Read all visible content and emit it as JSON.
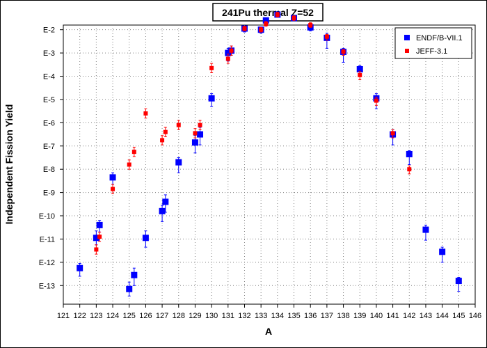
{
  "chart_data": {
    "type": "scatter",
    "title": "241Pu thermal Z=52",
    "xlabel": "A",
    "ylabel": "Independent Fission Yield",
    "xlim": [
      121,
      146
    ],
    "y_scale": "log",
    "ylim_exponent": [
      -13.8,
      -1.8
    ],
    "x_ticks": [
      121,
      122,
      123,
      124,
      125,
      126,
      127,
      128,
      129,
      130,
      131,
      132,
      133,
      134,
      135,
      136,
      137,
      138,
      139,
      140,
      141,
      142,
      143,
      144,
      145,
      146
    ],
    "y_tick_labels": [
      "E-2",
      "E-3",
      "E-4",
      "E-5",
      "E-6",
      "E-7",
      "E-8",
      "E-9",
      "E-10",
      "E-11",
      "E-12",
      "E-13"
    ],
    "y_tick_exponents": [
      -2,
      -3,
      -4,
      -5,
      -6,
      -7,
      -8,
      -9,
      -10,
      -11,
      -12,
      -13
    ],
    "grid": true,
    "legend_position": "top-right",
    "series": [
      {
        "name": "ENDF/B-VII.1",
        "color": "#0000ff",
        "marker": "square-large",
        "points": [
          {
            "x": 122,
            "y_exp": -12.25,
            "err_lo": 0.35,
            "err_hi": 0.2
          },
          {
            "x": 123,
            "y_exp": -10.95,
            "err_lo": 0.3,
            "err_hi": 0.3
          },
          {
            "x": 123.2,
            "y_exp": -10.4,
            "err_lo": 0.3,
            "err_hi": 0.2
          },
          {
            "x": 124,
            "y_exp": -8.35,
            "err_lo": 0.3,
            "err_hi": 0.2
          },
          {
            "x": 125,
            "y_exp": -13.15,
            "err_lo": 0.3,
            "err_hi": 0.3
          },
          {
            "x": 125.3,
            "y_exp": -12.55,
            "err_lo": 0.45,
            "err_hi": 0.3
          },
          {
            "x": 126,
            "y_exp": -10.95,
            "err_lo": 0.4,
            "err_hi": 0.3
          },
          {
            "x": 127,
            "y_exp": -9.8,
            "err_lo": 0.45,
            "err_hi": 0.25
          },
          {
            "x": 127.2,
            "y_exp": -9.4,
            "err_lo": 0.45,
            "err_hi": 0.3
          },
          {
            "x": 128,
            "y_exp": -7.7,
            "err_lo": 0.45,
            "err_hi": 0.2
          },
          {
            "x": 129,
            "y_exp": -6.85,
            "err_lo": 0.45,
            "err_hi": 0.3
          },
          {
            "x": 129.3,
            "y_exp": -6.5,
            "err_lo": 0.45,
            "err_hi": 0.3
          },
          {
            "x": 130,
            "y_exp": -4.95,
            "err_lo": 0.35,
            "err_hi": 0.2
          },
          {
            "x": 131,
            "y_exp": -3.0,
            "err_lo": 0.35,
            "err_hi": 0.2
          },
          {
            "x": 131.2,
            "y_exp": -2.9,
            "err_lo": 0.2,
            "err_hi": 0.2
          },
          {
            "x": 132,
            "y_exp": -1.95,
            "err_lo": 0.15,
            "err_hi": 0.1
          },
          {
            "x": 133,
            "y_exp": -2.0,
            "err_lo": 0.15,
            "err_hi": 0.1
          },
          {
            "x": 133.3,
            "y_exp": -1.6,
            "err_lo": 0.15,
            "err_hi": 0.1
          },
          {
            "x": 134,
            "y_exp": -1.35,
            "err_lo": 0.1,
            "err_hi": 0.1
          },
          {
            "x": 135,
            "y_exp": -1.5,
            "err_lo": 0.1,
            "err_hi": 0.1
          },
          {
            "x": 136,
            "y_exp": -1.9,
            "err_lo": 0.15,
            "err_hi": 0.1
          },
          {
            "x": 137,
            "y_exp": -2.35,
            "err_lo": 0.45,
            "err_hi": 0.2
          },
          {
            "x": 138,
            "y_exp": -2.95,
            "err_lo": 0.45,
            "err_hi": 0.15
          },
          {
            "x": 139,
            "y_exp": -3.7,
            "err_lo": 0.3,
            "err_hi": 0.15
          },
          {
            "x": 140,
            "y_exp": -4.95,
            "err_lo": 0.45,
            "err_hi": 0.2
          },
          {
            "x": 141,
            "y_exp": -6.5,
            "err_lo": 0.45,
            "err_hi": 0.2
          },
          {
            "x": 142,
            "y_exp": -7.35,
            "err_lo": 0.45,
            "err_hi": 0.15
          },
          {
            "x": 143,
            "y_exp": -10.6,
            "err_lo": 0.45,
            "err_hi": 0.2
          },
          {
            "x": 144,
            "y_exp": -11.55,
            "err_lo": 0.45,
            "err_hi": 0.2
          },
          {
            "x": 145,
            "y_exp": -12.8,
            "err_lo": 0.45,
            "err_hi": 0.15
          }
        ]
      },
      {
        "name": "JEFF-3.1",
        "color": "#ff0000",
        "marker": "square-small",
        "points": [
          {
            "x": 123,
            "y_exp": -11.45,
            "err_lo": 0.2,
            "err_hi": 0.2
          },
          {
            "x": 123.2,
            "y_exp": -10.9,
            "err_lo": 0.2,
            "err_hi": 0.2
          },
          {
            "x": 124,
            "y_exp": -8.85,
            "err_lo": 0.2,
            "err_hi": 0.2
          },
          {
            "x": 125,
            "y_exp": -7.8,
            "err_lo": 0.2,
            "err_hi": 0.2
          },
          {
            "x": 125.3,
            "y_exp": -7.25,
            "err_lo": 0.2,
            "err_hi": 0.2
          },
          {
            "x": 126,
            "y_exp": -5.6,
            "err_lo": 0.2,
            "err_hi": 0.2
          },
          {
            "x": 127,
            "y_exp": -6.75,
            "err_lo": 0.2,
            "err_hi": 0.2
          },
          {
            "x": 127.2,
            "y_exp": -6.4,
            "err_lo": 0.2,
            "err_hi": 0.2
          },
          {
            "x": 128,
            "y_exp": -6.1,
            "err_lo": 0.2,
            "err_hi": 0.2
          },
          {
            "x": 129,
            "y_exp": -6.45,
            "err_lo": 0.2,
            "err_hi": 0.2
          },
          {
            "x": 129.3,
            "y_exp": -6.1,
            "err_lo": 0.2,
            "err_hi": 0.2
          },
          {
            "x": 130,
            "y_exp": -3.65,
            "err_lo": 0.2,
            "err_hi": 0.2
          },
          {
            "x": 131,
            "y_exp": -3.25,
            "err_lo": 0.2,
            "err_hi": 0.2
          },
          {
            "x": 131.2,
            "y_exp": -2.9,
            "err_lo": 0.2,
            "err_hi": 0.2
          },
          {
            "x": 132,
            "y_exp": -1.95,
            "err_lo": 0.1,
            "err_hi": 0.1
          },
          {
            "x": 133,
            "y_exp": -2.0,
            "err_lo": 0.1,
            "err_hi": 0.1
          },
          {
            "x": 133.3,
            "y_exp": -1.75,
            "err_lo": 0.1,
            "err_hi": 0.1
          },
          {
            "x": 134,
            "y_exp": -1.35,
            "err_lo": 0.1,
            "err_hi": 0.1
          },
          {
            "x": 135,
            "y_exp": -1.5,
            "err_lo": 0.1,
            "err_hi": 0.1
          },
          {
            "x": 136,
            "y_exp": -1.8,
            "err_lo": 0.1,
            "err_hi": 0.1
          },
          {
            "x": 137,
            "y_exp": -2.3,
            "err_lo": 0.15,
            "err_hi": 0.1
          },
          {
            "x": 138,
            "y_exp": -2.95,
            "err_lo": 0.15,
            "err_hi": 0.1
          },
          {
            "x": 139,
            "y_exp": -3.95,
            "err_lo": 0.2,
            "err_hi": 0.15
          },
          {
            "x": 140,
            "y_exp": -5.05,
            "err_lo": 0.2,
            "err_hi": 0.15
          },
          {
            "x": 141,
            "y_exp": -6.45,
            "err_lo": 0.2,
            "err_hi": 0.15
          },
          {
            "x": 142,
            "y_exp": -8.0,
            "err_lo": 0.2,
            "err_hi": 0.15
          }
        ]
      }
    ]
  }
}
